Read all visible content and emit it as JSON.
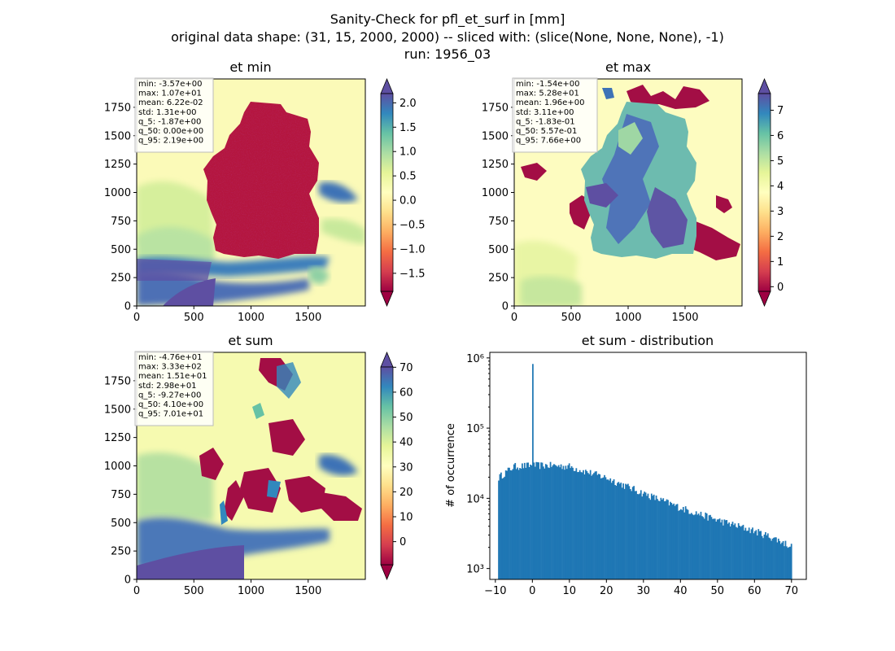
{
  "figure": {
    "title_line1": "Sanity-Check for pfl_et_surf in [mm]",
    "title_line2": "original data shape: (31, 15, 2000, 2000) -- sliced with: (slice(None, None, None), -1)",
    "title_line3": "run: 1956_03"
  },
  "colors": {
    "colormap": [
      "#9e0142",
      "#d53e4f",
      "#f46d43",
      "#fdae61",
      "#fee08b",
      "#ffffbf",
      "#e6f598",
      "#abdda4",
      "#66c2a5",
      "#3288bd",
      "#5e4fa2"
    ],
    "hist_bar": "#1f77b4"
  },
  "panels": [
    {
      "id": "et_min",
      "title": "et min",
      "xticks": [
        "0",
        "500",
        "1000",
        "1500"
      ],
      "yticks": [
        "0",
        "250",
        "500",
        "750",
        "1000",
        "1250",
        "1500",
        "1750"
      ],
      "stats": [
        "min: -3.57e+00",
        "max: 1.07e+01",
        "mean: 6.22e-02",
        "std: 1.31e+00",
        "q_5: -1.87e+00",
        "q_50: 0.00e+00",
        "q_95: 2.19e+00"
      ],
      "colorbar": {
        "vmin": -1.87,
        "vmax": 2.19,
        "ticks": [
          "2.0",
          "1.5",
          "1.0",
          "0.5",
          "0.0",
          "−0.5",
          "−1.0",
          "−1.5"
        ],
        "tick_values": [
          2.0,
          1.5,
          1.0,
          0.5,
          0.0,
          -0.5,
          -1.0,
          -1.5
        ]
      }
    },
    {
      "id": "et_max",
      "title": "et max",
      "xticks": [
        "0",
        "500",
        "1000",
        "1500"
      ],
      "yticks": [
        "0",
        "250",
        "500",
        "750",
        "1000",
        "1250",
        "1500",
        "1750"
      ],
      "stats": [
        "min: -1.54e+00",
        "max: 5.28e+01",
        "mean: 1.96e+00",
        "std: 3.11e+00",
        "q_5: -1.83e-01",
        "q_50: 5.57e-01",
        "q_95: 7.66e+00"
      ],
      "colorbar": {
        "vmin": -0.183,
        "vmax": 7.66,
        "ticks": [
          "7",
          "6",
          "5",
          "4",
          "3",
          "2",
          "1",
          "0"
        ],
        "tick_values": [
          7,
          6,
          5,
          4,
          3,
          2,
          1,
          0
        ]
      }
    },
    {
      "id": "et_sum",
      "title": "et sum",
      "xticks": [
        "0",
        "500",
        "1000",
        "1500"
      ],
      "yticks": [
        "0",
        "250",
        "500",
        "750",
        "1000",
        "1250",
        "1500",
        "1750"
      ],
      "stats": [
        "min: -4.76e+01",
        "max: 3.33e+02",
        "mean: 1.51e+01",
        "std: 2.98e+01",
        "q_5: -9.27e+00",
        "q_50: 4.10e+00",
        "q_95: 7.01e+01"
      ],
      "colorbar": {
        "vmin": -9.27,
        "vmax": 70.1,
        "ticks": [
          "70",
          "60",
          "50",
          "40",
          "30",
          "20",
          "10",
          "0"
        ],
        "tick_values": [
          70,
          60,
          50,
          40,
          30,
          20,
          10,
          0
        ]
      }
    }
  ],
  "chart_data": {
    "type": "bar",
    "title": "et sum - distribution",
    "xlabel": "",
    "ylabel": "# of occurrence",
    "yscale": "log",
    "xlim": [
      -11.5,
      74
    ],
    "ylim": [
      700,
      1200000
    ],
    "xticks": [
      "−10",
      "0",
      "10",
      "20",
      "30",
      "40",
      "50",
      "60",
      "70"
    ],
    "xtick_values": [
      -10,
      0,
      10,
      20,
      30,
      40,
      50,
      60,
      70
    ],
    "yticks": [
      "10³",
      "10⁴",
      "10⁵",
      "10⁶"
    ],
    "ytick_values": [
      1000,
      10000,
      100000,
      1000000
    ],
    "bin_range": [
      -9.27,
      70.1
    ],
    "bins": 250,
    "profile": {
      "x": [
        -9.27,
        -5,
        0,
        5,
        10,
        20,
        30,
        40,
        50,
        60,
        65,
        70.1
      ],
      "y": [
        20000,
        29000,
        30000,
        30000,
        29000,
        20000,
        12000,
        7500,
        5000,
        3500,
        2800,
        2100
      ]
    },
    "spike": {
      "x": 0,
      "y": 820000
    }
  }
}
